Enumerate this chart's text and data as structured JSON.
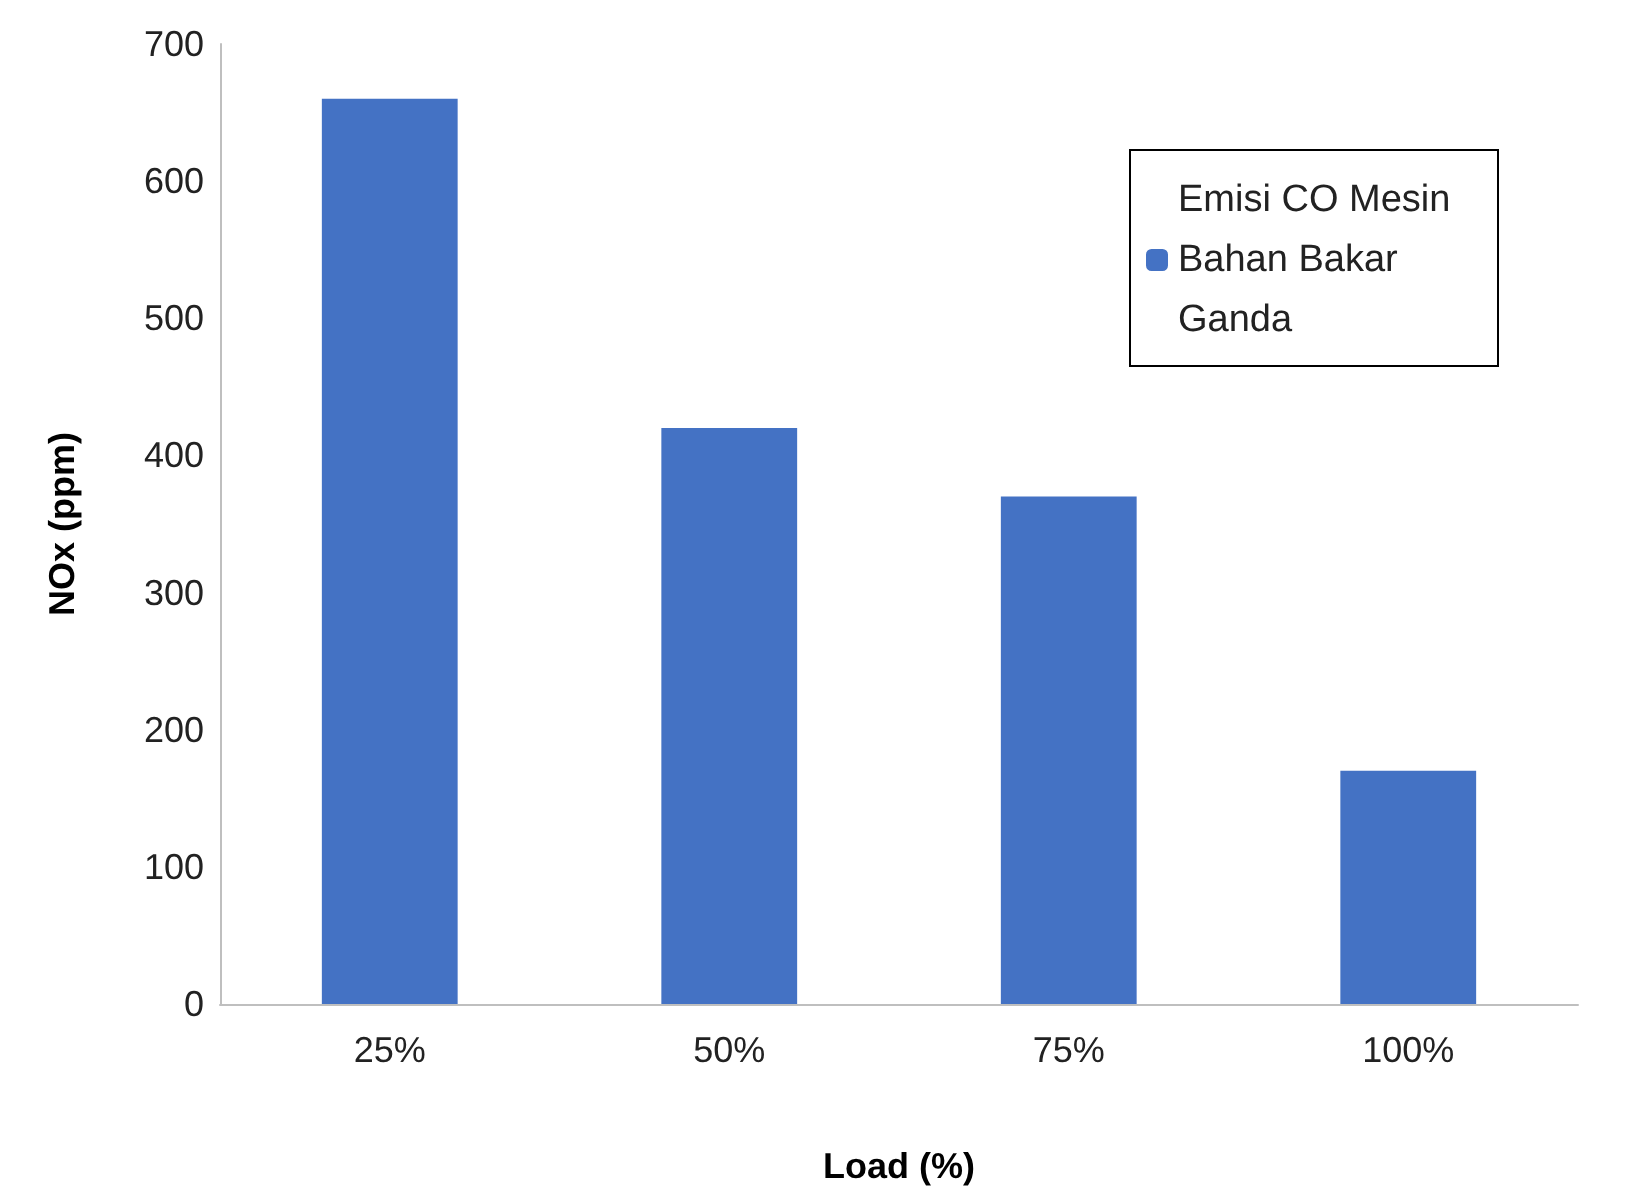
{
  "chart_data": {
    "type": "bar",
    "xlabel": "Load (%)",
    "ylabel": "NOx (ppm)",
    "categories": [
      "25%",
      "50%",
      "75%",
      "100%"
    ],
    "series": [
      {
        "name": "Emisi CO Mesin Bahan Bakar Ganda",
        "color": "#4472c4",
        "values": [
          660,
          420,
          370,
          170
        ]
      }
    ],
    "ylim": [
      0,
      700
    ],
    "yticks": [
      0,
      100,
      200,
      300,
      400,
      500,
      600,
      700
    ],
    "grid": false,
    "legend": "top right"
  }
}
